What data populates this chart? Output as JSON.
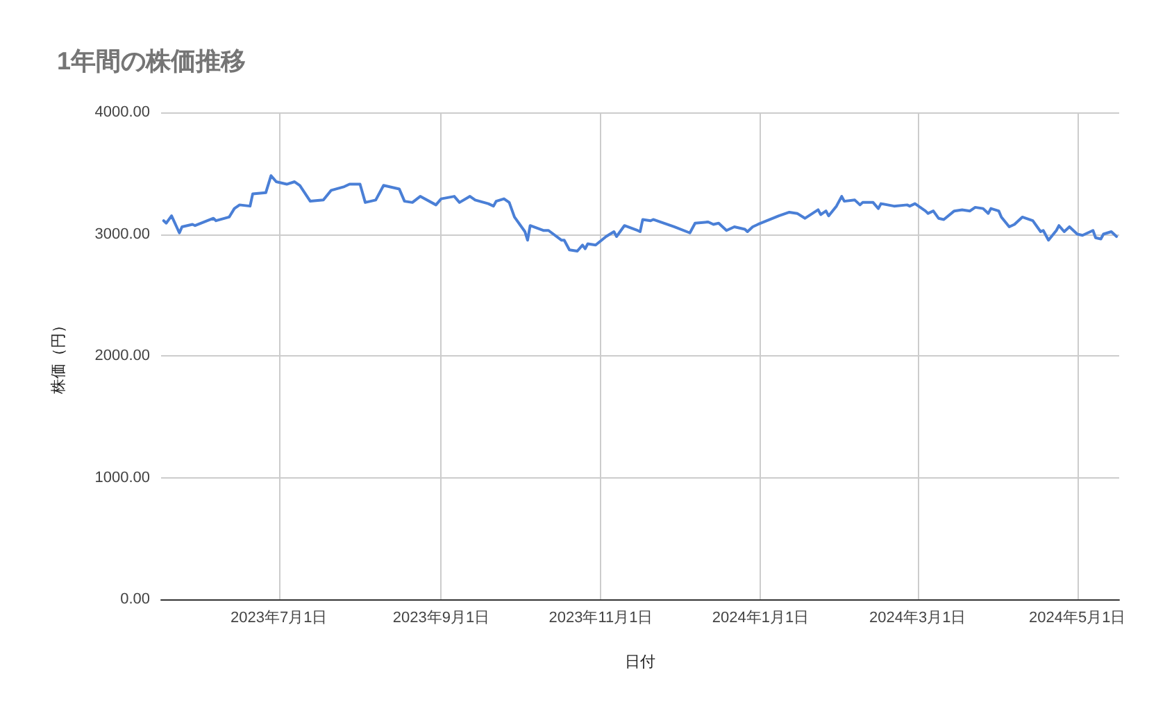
{
  "chart_data": {
    "type": "line",
    "title": "1年間の株価推移",
    "xlabel": "日付",
    "ylabel": "株価（円）",
    "x": [
      "2023-05-18",
      "2023-05-19",
      "2023-05-21",
      "2023-05-24",
      "2023-05-25",
      "2023-05-29",
      "2023-05-30",
      "2023-06-06",
      "2023-06-07",
      "2023-06-12",
      "2023-06-14",
      "2023-06-16",
      "2023-06-20",
      "2023-06-21",
      "2023-06-26",
      "2023-06-28",
      "2023-06-30",
      "2023-07-04",
      "2023-07-07",
      "2023-07-09",
      "2023-07-13",
      "2023-07-18",
      "2023-07-21",
      "2023-07-26",
      "2023-07-28",
      "2023-08-01",
      "2023-08-03",
      "2023-08-07",
      "2023-08-10",
      "2023-08-16",
      "2023-08-18",
      "2023-08-21",
      "2023-08-24",
      "2023-08-30",
      "2023-09-01",
      "2023-09-06",
      "2023-09-08",
      "2023-09-12",
      "2023-09-14",
      "2023-09-19",
      "2023-09-21",
      "2023-09-22",
      "2023-09-25",
      "2023-09-27",
      "2023-09-29",
      "2023-10-03",
      "2023-10-04",
      "2023-10-05",
      "2023-10-10",
      "2023-10-12",
      "2023-10-17",
      "2023-10-18",
      "2023-10-20",
      "2023-10-23",
      "2023-10-25",
      "2023-10-26",
      "2023-10-27",
      "2023-10-30",
      "2023-11-03",
      "2023-11-06",
      "2023-11-07",
      "2023-11-10",
      "2023-11-15",
      "2023-11-16",
      "2023-11-17",
      "2023-11-20",
      "2023-11-21",
      "2023-11-29",
      "2023-12-05",
      "2023-12-07",
      "2023-12-12",
      "2023-12-14",
      "2023-12-16",
      "2023-12-19",
      "2023-12-22",
      "2023-12-26",
      "2023-12-27",
      "2023-12-29",
      "2023-12-31",
      "2024-01-08",
      "2024-01-12",
      "2024-01-15",
      "2024-01-18",
      "2024-01-23",
      "2024-01-24",
      "2024-01-26",
      "2024-01-27",
      "2024-01-30",
      "2024-02-01",
      "2024-02-02",
      "2024-02-06",
      "2024-02-08",
      "2024-02-09",
      "2024-02-13",
      "2024-02-15",
      "2024-02-16",
      "2024-02-21",
      "2024-02-26",
      "2024-02-27",
      "2024-02-29",
      "2024-03-04",
      "2024-03-05",
      "2024-03-07",
      "2024-03-09",
      "2024-03-11",
      "2024-03-15",
      "2024-03-18",
      "2024-03-21",
      "2024-03-23",
      "2024-03-26",
      "2024-03-28",
      "2024-03-29",
      "2024-04-01",
      "2024-04-02",
      "2024-04-05",
      "2024-04-07",
      "2024-04-10",
      "2024-04-14",
      "2024-04-17",
      "2024-04-18",
      "2024-04-20",
      "2024-04-23",
      "2024-04-24",
      "2024-04-26",
      "2024-04-28",
      "2024-05-01",
      "2024-05-03",
      "2024-05-07",
      "2024-05-08",
      "2024-05-10",
      "2024-05-11",
      "2024-05-14",
      "2024-05-16"
    ],
    "series": [
      {
        "color": "#4a7fd6",
        "values": [
          3110,
          3090,
          3150,
          3010,
          3060,
          3080,
          3070,
          3130,
          3110,
          3140,
          3210,
          3240,
          3230,
          3330,
          3340,
          3480,
          3430,
          3410,
          3430,
          3400,
          3270,
          3280,
          3360,
          3390,
          3410,
          3410,
          3260,
          3280,
          3400,
          3370,
          3270,
          3260,
          3310,
          3240,
          3290,
          3310,
          3260,
          3310,
          3280,
          3250,
          3230,
          3270,
          3290,
          3260,
          3140,
          3020,
          2950,
          3070,
          3030,
          3030,
          2950,
          2950,
          2870,
          2860,
          2910,
          2880,
          2920,
          2910,
          2980,
          3020,
          2980,
          3070,
          3030,
          3020,
          3120,
          3110,
          3120,
          3060,
          3010,
          3090,
          3100,
          3080,
          3090,
          3030,
          3060,
          3040,
          3020,
          3060,
          3080,
          3150,
          3180,
          3170,
          3130,
          3200,
          3160,
          3190,
          3150,
          3230,
          3310,
          3270,
          3280,
          3240,
          3260,
          3260,
          3210,
          3250,
          3230,
          3240,
          3230,
          3250,
          3190,
          3170,
          3190,
          3130,
          3120,
          3190,
          3200,
          3190,
          3220,
          3210,
          3170,
          3210,
          3190,
          3140,
          3060,
          3080,
          3140,
          3110,
          3020,
          3030,
          2950,
          3030,
          3070,
          3020,
          3060,
          3000,
          2990,
          3030,
          2970,
          2960,
          3000,
          3020,
          2980
        ]
      }
    ],
    "xlim": [
      "2023-05-17",
      "2024-05-17"
    ],
    "xticks": [
      {
        "value": "2023-07-01",
        "label": "2023年7月1日"
      },
      {
        "value": "2023-09-01",
        "label": "2023年9月1日"
      },
      {
        "value": "2023-11-01",
        "label": "2023年11月1日"
      },
      {
        "value": "2024-01-01",
        "label": "2024年1月1日"
      },
      {
        "value": "2024-03-01",
        "label": "2024年3月1日"
      },
      {
        "value": "2024-05-01",
        "label": "2024年5月1日"
      }
    ],
    "ylim": [
      0,
      4000
    ],
    "yticks": [
      {
        "value": 0,
        "label": "0.00"
      },
      {
        "value": 1000,
        "label": "1000.00"
      },
      {
        "value": 2000,
        "label": "2000.00"
      },
      {
        "value": 3000,
        "label": "3000.00"
      },
      {
        "value": 4000,
        "label": "4000.00"
      }
    ],
    "grid": true,
    "marker": "none",
    "line_style": "solid"
  }
}
